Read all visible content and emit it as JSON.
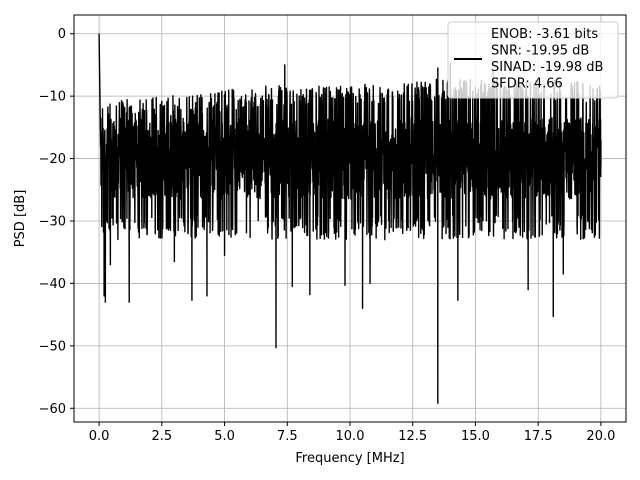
{
  "chart_data": {
    "type": "line",
    "xlabel": "Frequency [MHz]",
    "ylabel": "PSD [dB]",
    "xlim": [
      -1.0,
      21.0
    ],
    "ylim": [
      -62.2,
      3.0
    ],
    "xticks": [
      0.0,
      2.5,
      5.0,
      7.5,
      10.0,
      12.5,
      15.0,
      17.5,
      20.0
    ],
    "xtick_labels": [
      "0.0",
      "2.5",
      "5.0",
      "7.5",
      "10.0",
      "12.5",
      "15.0",
      "17.5",
      "20.0"
    ],
    "yticks": [
      0,
      -10,
      -20,
      -30,
      -40,
      -50,
      -60
    ],
    "ytick_labels": [
      "0",
      "−10",
      "−20",
      "−30",
      "−40",
      "−50",
      "−60"
    ],
    "grid": true,
    "legend_position": "top-right",
    "series": [
      {
        "name": "ENOB: -3.61 bits\nSNR: -19.95 dB\nSINAD: -19.98 dB\nSFDR: 4.66",
        "color": "#000000",
        "noise_floor_db": -20.0,
        "noise_band_db": [
          -29.0,
          -10.0
        ],
        "envelope_max_db": [
          [
            0.0,
            -11
          ],
          [
            2.5,
            -10
          ],
          [
            5.0,
            -9
          ],
          [
            7.5,
            -8
          ],
          [
            10.0,
            -8
          ],
          [
            12.5,
            -7.5
          ],
          [
            15.0,
            -7
          ],
          [
            17.5,
            -7
          ],
          [
            20.0,
            -8
          ]
        ],
        "points": [
          [
            0.0,
            0.0
          ],
          [
            0.1,
            -16.0
          ],
          [
            0.2,
            -42.0
          ],
          [
            0.25,
            -43.0
          ],
          [
            0.45,
            -37.0
          ],
          [
            1.2,
            -43.0
          ],
          [
            3.0,
            -36.5
          ],
          [
            3.7,
            -42.7
          ],
          [
            4.3,
            -42.0
          ],
          [
            5.0,
            -35.5
          ],
          [
            7.05,
            -50.3
          ],
          [
            7.7,
            -40.5
          ],
          [
            8.4,
            -41.8
          ],
          [
            9.8,
            -40.3
          ],
          [
            10.5,
            -44.0
          ],
          [
            10.8,
            -40.0
          ],
          [
            13.5,
            -59.2
          ],
          [
            14.3,
            -42.7
          ],
          [
            17.1,
            -41.0
          ],
          [
            18.1,
            -45.3
          ],
          [
            18.5,
            -38.5
          ],
          [
            7.4,
            -5.0
          ],
          [
            13.5,
            -5.5
          ],
          [
            14.0,
            -4.7
          ],
          [
            15.7,
            -6.0
          ],
          [
            20.0,
            -17.0
          ]
        ]
      }
    ],
    "legend": {
      "lines": [
        "ENOB: -3.61 bits",
        "SNR: -19.95 dB",
        "SINAD: -19.98 dB",
        "SFDR: 4.66"
      ]
    }
  }
}
